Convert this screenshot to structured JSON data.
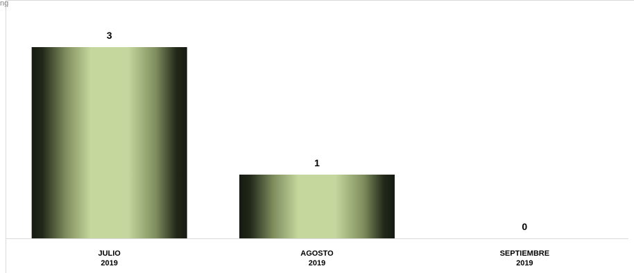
{
  "page": {
    "corner_text": "ng"
  },
  "colors": {
    "bar_edge": "#141a10",
    "bar_center": "#c5d79d",
    "bar_mid": "#7f8d5e",
    "axis_line": "#d9d9d9",
    "frame_line": "#d9d9d9"
  },
  "chart_data": {
    "type": "bar",
    "title": "",
    "xlabel": "",
    "ylabel": "",
    "categories": [
      [
        "JULIO",
        "2019"
      ],
      [
        "AGOSTO",
        "2019"
      ],
      [
        "SEPTIEMBRE",
        "2019"
      ]
    ],
    "values": [
      3,
      1,
      0
    ],
    "data_labels": [
      "3",
      "1",
      "0"
    ],
    "ylim": [
      0,
      3.6
    ],
    "grid": false,
    "legend": "none"
  }
}
